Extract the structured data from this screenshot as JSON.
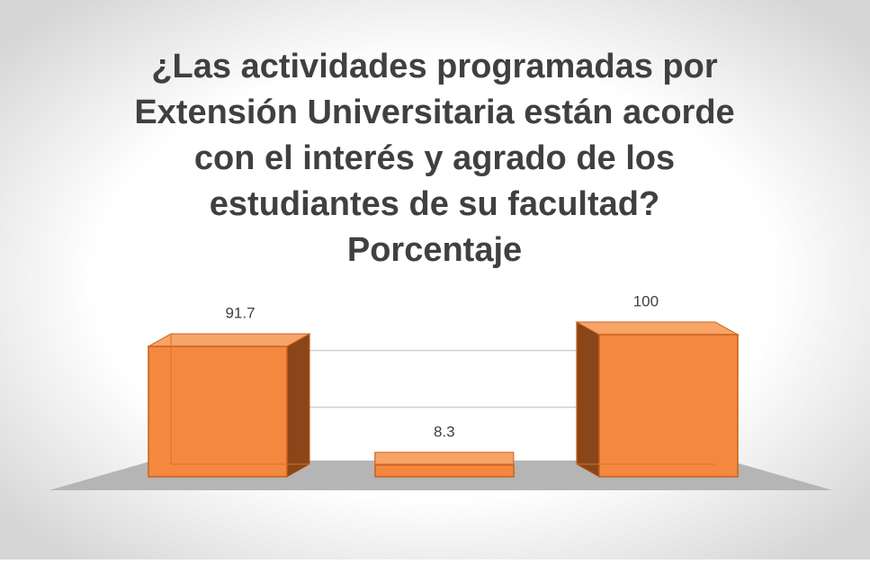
{
  "chart_data": {
    "type": "bar3d",
    "title": [
      "¿Las actividades programadas por",
      "Extensión Universitaria están acorde",
      "con el interés y agrado de los",
      "estudiantes de su facultad?",
      "Porcentaje"
    ],
    "categories": [
      null,
      null,
      null
    ],
    "values": [
      91.7,
      8.3,
      100
    ],
    "color": "#f4883f",
    "ylim": [
      0,
      100
    ],
    "yticks": [
      0,
      40,
      80
    ],
    "grid": true
  }
}
